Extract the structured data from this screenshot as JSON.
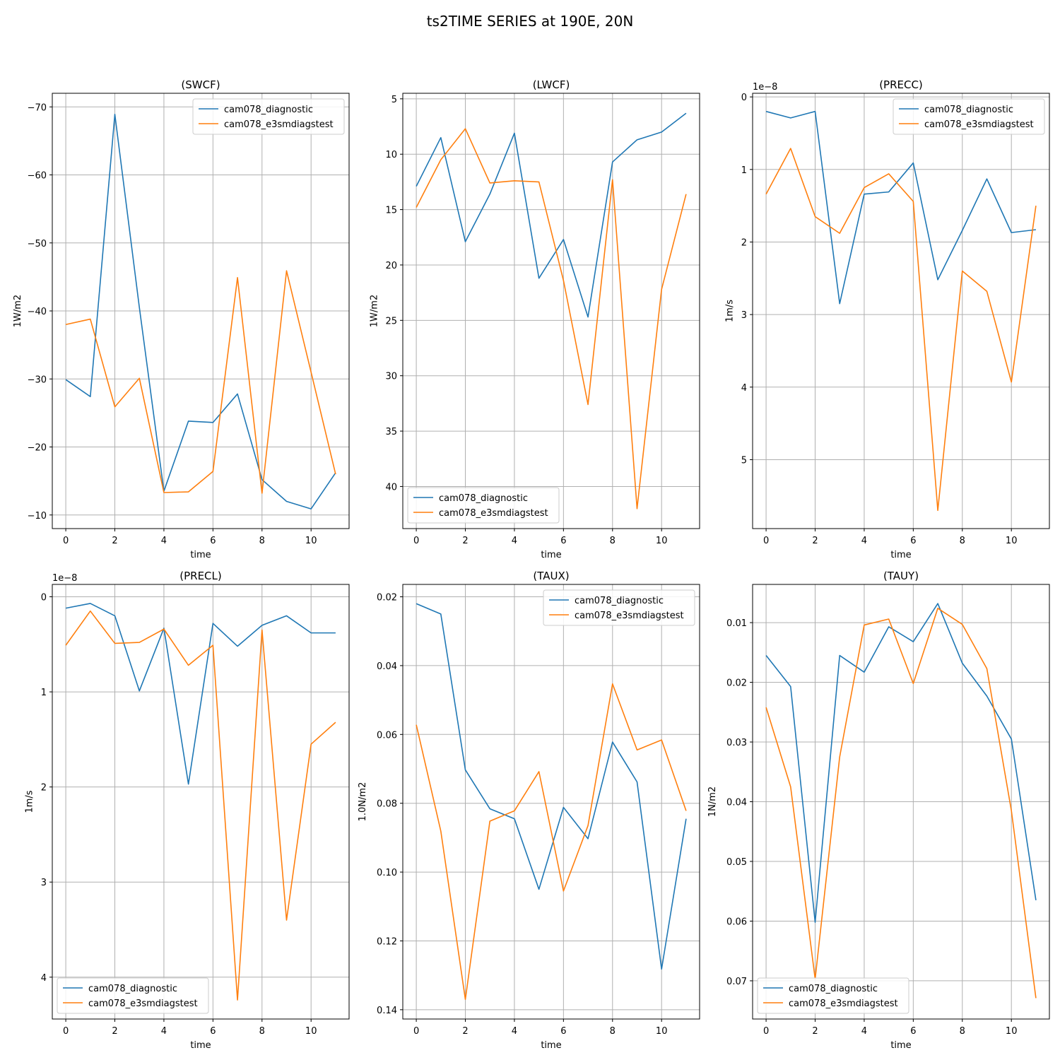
{
  "figure": {
    "title": "ts2TIME SERIES at 190E, 20N"
  },
  "colors": {
    "series1": "#1f77b4",
    "series2": "#ff7f0e",
    "grid": "#b0b0b0",
    "axes": "#000000",
    "legend_border": "#cccccc"
  },
  "chart_data": [
    {
      "type": "line",
      "title": "(SWCF)",
      "xlabel": "time",
      "ylabel": "1W/m2",
      "xlim": [
        -0.55,
        11.55
      ],
      "ylim": [
        -8,
        -72
      ],
      "inverted_y": true,
      "xticks": [
        0,
        2,
        4,
        6,
        8,
        10
      ],
      "yticks": [
        -70,
        -60,
        -50,
        -40,
        -30,
        -20,
        -10
      ],
      "ytick_labels": [
        "−70",
        "−60",
        "−50",
        "−40",
        "−30",
        "−20",
        "−10"
      ],
      "offset_text": "",
      "grid": true,
      "legend_loc": "upper right",
      "x": [
        0,
        1,
        2,
        3,
        4,
        5,
        6,
        7,
        8,
        9,
        10,
        11
      ],
      "series": [
        {
          "name": "cam078_diagnostic",
          "values": [
            -29.9,
            -27.4,
            -68.9,
            -40.5,
            -13.5,
            -23.8,
            -23.6,
            -27.8,
            -15.2,
            -12.0,
            -10.9,
            -16.2
          ]
        },
        {
          "name": "cam078_e3smdiagstest",
          "values": [
            -38.0,
            -38.8,
            -25.9,
            -30.1,
            -13.3,
            -13.4,
            -16.4,
            -44.9,
            -13.2,
            -45.9,
            -31.0,
            -16.0
          ]
        }
      ]
    },
    {
      "type": "line",
      "title": "(LWCF)",
      "xlabel": "time",
      "ylabel": "1W/m2",
      "xlim": [
        -0.55,
        11.55
      ],
      "ylim": [
        43.8,
        4.5
      ],
      "inverted_y": true,
      "xticks": [
        0,
        2,
        4,
        6,
        8,
        10
      ],
      "yticks": [
        5,
        10,
        15,
        20,
        25,
        30,
        35,
        40
      ],
      "ytick_labels": [
        "5",
        "10",
        "15",
        "20",
        "25",
        "30",
        "35",
        "40"
      ],
      "offset_text": "",
      "grid": true,
      "legend_loc": "lower left",
      "x": [
        0,
        1,
        2,
        3,
        4,
        5,
        6,
        7,
        8,
        9,
        10,
        11
      ],
      "series": [
        {
          "name": "cam078_diagnostic",
          "values": [
            12.9,
            8.5,
            17.9,
            13.6,
            8.1,
            21.2,
            17.7,
            24.7,
            10.7,
            8.7,
            8.0,
            6.3
          ]
        },
        {
          "name": "cam078_e3smdiagstest",
          "values": [
            14.8,
            10.5,
            7.7,
            12.6,
            12.4,
            12.5,
            21.4,
            32.6,
            12.3,
            42.0,
            22.2,
            13.6
          ]
        }
      ]
    },
    {
      "type": "line",
      "title": "(PRECC)",
      "xlabel": "time",
      "ylabel": "1m/s",
      "xlim": [
        -0.55,
        11.55
      ],
      "ylim": [
        5.95,
        -0.05
      ],
      "inverted_y": true,
      "xticks": [
        0,
        2,
        4,
        6,
        8,
        10
      ],
      "yticks": [
        0,
        1,
        2,
        3,
        4,
        5
      ],
      "ytick_labels": [
        "0",
        "1",
        "2",
        "3",
        "4",
        "5"
      ],
      "offset_text": "1e−8",
      "grid": true,
      "legend_loc": "upper right",
      "x": [
        0,
        1,
        2,
        3,
        4,
        5,
        6,
        7,
        8,
        9,
        10,
        11
      ],
      "series": [
        {
          "name": "cam078_diagnostic",
          "values": [
            0.2,
            0.29,
            0.2,
            2.85,
            1.34,
            1.31,
            0.91,
            2.52,
            1.84,
            1.13,
            1.87,
            1.83
          ]
        },
        {
          "name": "cam078_e3smdiagstest",
          "values": [
            1.34,
            0.71,
            1.65,
            1.88,
            1.25,
            1.06,
            1.44,
            5.7,
            2.4,
            2.68,
            3.93,
            1.5
          ]
        }
      ]
    },
    {
      "type": "line",
      "title": "(PRECL)",
      "xlabel": "time",
      "ylabel": "1m/s",
      "xlim": [
        -0.55,
        11.55
      ],
      "ylim": [
        4.44,
        -0.13
      ],
      "inverted_y": true,
      "xticks": [
        0,
        2,
        4,
        6,
        8,
        10
      ],
      "yticks": [
        0,
        1,
        2,
        3,
        4
      ],
      "ytick_labels": [
        "0",
        "1",
        "2",
        "3",
        "4"
      ],
      "offset_text": "1e−8",
      "grid": true,
      "legend_loc": "lower left",
      "x": [
        0,
        1,
        2,
        3,
        4,
        5,
        6,
        7,
        8,
        9,
        10,
        11
      ],
      "series": [
        {
          "name": "cam078_diagnostic",
          "values": [
            0.12,
            0.07,
            0.2,
            0.99,
            0.33,
            1.97,
            0.28,
            0.52,
            0.3,
            0.2,
            0.38,
            0.38
          ]
        },
        {
          "name": "cam078_e3smdiagstest",
          "values": [
            0.51,
            0.15,
            0.49,
            0.48,
            0.34,
            0.72,
            0.51,
            4.24,
            0.35,
            3.4,
            1.55,
            1.32
          ]
        }
      ]
    },
    {
      "type": "line",
      "title": "(TAUX)",
      "xlabel": "time",
      "ylabel": "1.0N/m2",
      "xlim": [
        -0.55,
        11.55
      ],
      "ylim": [
        0.1427,
        0.0164
      ],
      "inverted_y": true,
      "xticks": [
        0,
        2,
        4,
        6,
        8,
        10
      ],
      "yticks": [
        0.02,
        0.04,
        0.06,
        0.08,
        0.1,
        0.12,
        0.14
      ],
      "ytick_labels": [
        "0.02",
        "0.04",
        "0.06",
        "0.08",
        "0.10",
        "0.12",
        "0.14"
      ],
      "offset_text": "",
      "grid": true,
      "legend_loc": "upper right",
      "x": [
        0,
        1,
        2,
        3,
        4,
        5,
        6,
        7,
        8,
        9,
        10,
        11
      ],
      "series": [
        {
          "name": "cam078_diagnostic",
          "values": [
            0.022,
            0.025,
            0.0703,
            0.0816,
            0.0845,
            0.105,
            0.0812,
            0.0903,
            0.0622,
            0.0738,
            0.1282,
            0.0845
          ]
        },
        {
          "name": "cam078_e3smdiagstest",
          "values": [
            0.0572,
            0.0881,
            0.137,
            0.0852,
            0.0822,
            0.0708,
            0.1055,
            0.0865,
            0.0453,
            0.0645,
            0.0616,
            0.0822
          ]
        }
      ]
    },
    {
      "type": "line",
      "title": "(TAUY)",
      "xlabel": "time",
      "ylabel": "1N/m2",
      "xlim": [
        -0.55,
        11.55
      ],
      "ylim": [
        0.0764,
        0.0036
      ],
      "inverted_y": true,
      "xticks": [
        0,
        2,
        4,
        6,
        8,
        10
      ],
      "yticks": [
        0.01,
        0.02,
        0.03,
        0.04,
        0.05,
        0.06,
        0.07
      ],
      "ytick_labels": [
        "0.01",
        "0.02",
        "0.03",
        "0.04",
        "0.05",
        "0.06",
        "0.07"
      ],
      "offset_text": "",
      "grid": true,
      "legend_loc": "lower left",
      "x": [
        0,
        1,
        2,
        3,
        4,
        5,
        6,
        7,
        8,
        9,
        10,
        11
      ],
      "series": [
        {
          "name": "cam078_diagnostic",
          "values": [
            0.0155,
            0.0207,
            0.0602,
            0.0155,
            0.0183,
            0.0107,
            0.0132,
            0.0068,
            0.0168,
            0.0223,
            0.0295,
            0.0565
          ]
        },
        {
          "name": "cam078_e3smdiagstest",
          "values": [
            0.0242,
            0.0375,
            0.0697,
            0.0325,
            0.0104,
            0.0094,
            0.0202,
            0.0076,
            0.0103,
            0.0177,
            0.0415,
            0.0729
          ]
        }
      ]
    }
  ]
}
